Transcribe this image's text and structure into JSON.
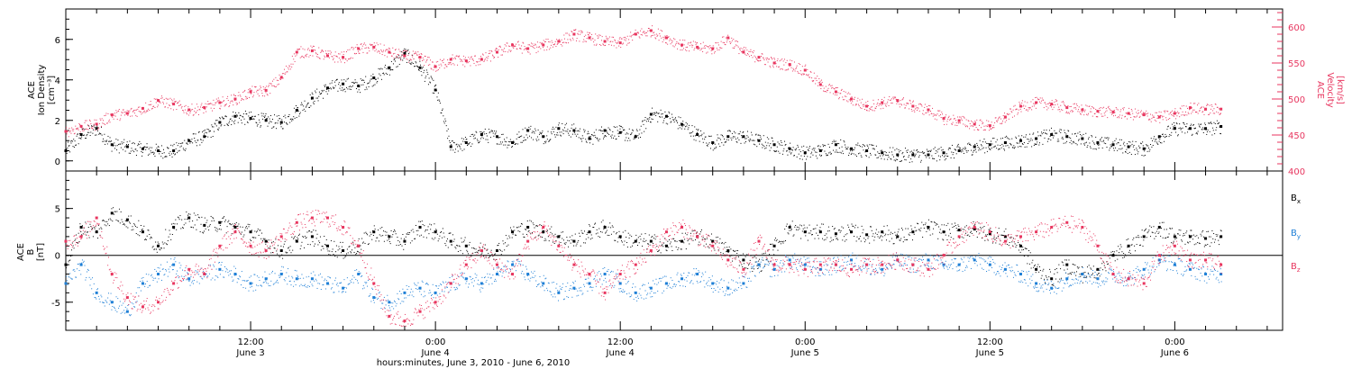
{
  "xlabel": "hours:minutes, June  3, 2010 - June  6, 2010",
  "colors": {
    "black": "#000000",
    "pink": "#e8365f",
    "blue": "#1e7fd6"
  },
  "x_range_hours": [
    0,
    79
  ],
  "x_ticks": [
    {
      "hours": 12,
      "top": "12:00",
      "bottom": "June 3"
    },
    {
      "hours": 24,
      "top": "0:00",
      "bottom": "June 4"
    },
    {
      "hours": 36,
      "top": "12:00",
      "bottom": "June 4"
    },
    {
      "hours": 48,
      "top": "0:00",
      "bottom": "June 5"
    },
    {
      "hours": 60,
      "top": "12:00",
      "bottom": "June 5"
    },
    {
      "hours": 72,
      "top": "0:00",
      "bottom": "June 6"
    }
  ],
  "chart_data": [
    {
      "type": "scatter",
      "panel": "top",
      "ylabel_left": [
        "ACE",
        "Ion Density",
        "[cm⁻³]"
      ],
      "ylabel_right": [
        "ACE",
        "Velocity",
        "[km/s]"
      ],
      "ylim_left": [
        -0.5,
        7.5
      ],
      "ylim_right": [
        400,
        625
      ],
      "yticks_left": [
        0,
        2,
        4,
        6
      ],
      "yticks_right": [
        400,
        450,
        500,
        550,
        600
      ],
      "series": [
        {
          "axis": "left",
          "color": "black",
          "x": [
            0,
            1,
            2,
            3,
            4,
            5,
            6,
            7,
            8,
            9,
            10,
            11,
            12,
            13,
            14,
            15,
            16,
            17,
            18,
            19,
            20,
            21,
            22,
            23,
            24,
            25,
            26,
            27,
            28,
            29,
            30,
            31,
            32,
            33,
            34,
            35,
            36,
            37,
            38,
            39,
            40,
            41,
            42,
            43,
            44,
            45,
            46,
            47,
            48,
            49,
            50,
            51,
            52,
            53,
            54,
            55,
            56,
            57,
            58,
            59,
            60,
            61,
            62,
            63,
            64,
            65,
            66,
            67,
            68,
            69,
            70,
            71,
            72,
            73,
            74,
            75
          ],
          "y": [
            0.5,
            1.3,
            1.6,
            0.8,
            0.7,
            0.6,
            0.5,
            0.5,
            1.0,
            1.2,
            1.9,
            2.2,
            2.1,
            2.0,
            1.9,
            2.5,
            3.1,
            3.6,
            3.8,
            3.7,
            4.1,
            4.6,
            5.3,
            4.6,
            3.5,
            0.7,
            0.9,
            1.3,
            1.2,
            0.9,
            1.5,
            1.2,
            1.6,
            1.5,
            1.1,
            1.5,
            1.4,
            1.2,
            2.3,
            2.2,
            1.8,
            1.3,
            0.9,
            1.2,
            1.2,
            1.0,
            0.8,
            0.6,
            0.4,
            0.5,
            0.8,
            0.6,
            0.5,
            0.4,
            0.3,
            0.3,
            0.3,
            0.4,
            0.5,
            0.7,
            0.8,
            0.9,
            1.0,
            1.1,
            1.3,
            1.2,
            1.1,
            0.9,
            0.8,
            0.7,
            0.6,
            1.2,
            1.6,
            1.6,
            1.6,
            1.7
          ]
        },
        {
          "axis": "right",
          "color": "pink",
          "x": [
            0,
            1,
            2,
            3,
            4,
            5,
            6,
            7,
            8,
            9,
            10,
            11,
            12,
            13,
            14,
            15,
            16,
            17,
            18,
            19,
            20,
            21,
            22,
            23,
            24,
            25,
            26,
            27,
            28,
            29,
            30,
            31,
            32,
            33,
            34,
            35,
            36,
            37,
            38,
            39,
            40,
            41,
            42,
            43,
            44,
            45,
            46,
            47,
            48,
            49,
            50,
            51,
            52,
            53,
            54,
            55,
            56,
            57,
            58,
            59,
            60,
            61,
            62,
            63,
            64,
            65,
            66,
            67,
            68,
            69,
            70,
            71,
            72,
            73,
            74,
            75
          ],
          "y": [
            455,
            462,
            465,
            478,
            480,
            487,
            498,
            493,
            485,
            488,
            495,
            500,
            510,
            512,
            530,
            565,
            567,
            560,
            558,
            570,
            572,
            565,
            560,
            558,
            545,
            555,
            553,
            555,
            565,
            575,
            570,
            575,
            580,
            590,
            585,
            580,
            578,
            590,
            595,
            585,
            575,
            572,
            570,
            585,
            565,
            558,
            550,
            548,
            540,
            520,
            510,
            500,
            490,
            495,
            498,
            490,
            485,
            473,
            470,
            465,
            463,
            475,
            490,
            495,
            493,
            488,
            485,
            483,
            482,
            480,
            478,
            475,
            480,
            488,
            486,
            486
          ]
        }
      ]
    },
    {
      "type": "scatter",
      "panel": "bottom",
      "ylabel_left": [
        "ACE",
        "B",
        "[nT]"
      ],
      "ylim": [
        -8,
        9
      ],
      "yticks": [
        -5,
        0,
        5
      ],
      "legend_position": "right",
      "series": [
        {
          "name": "Bx",
          "label_main": "B",
          "label_sub": "x",
          "color": "black",
          "x": [
            0,
            1,
            2,
            3,
            4,
            5,
            6,
            7,
            8,
            9,
            10,
            11,
            12,
            13,
            14,
            15,
            16,
            17,
            18,
            19,
            20,
            21,
            22,
            23,
            24,
            25,
            26,
            27,
            28,
            29,
            30,
            31,
            32,
            33,
            34,
            35,
            36,
            37,
            38,
            39,
            40,
            41,
            42,
            43,
            44,
            45,
            46,
            47,
            48,
            49,
            50,
            51,
            52,
            53,
            54,
            55,
            56,
            57,
            58,
            59,
            60,
            61,
            62,
            63,
            64,
            65,
            66,
            67,
            68,
            69,
            70,
            71,
            72,
            73,
            74,
            75
          ],
          "y": [
            -1.0,
            3.0,
            2.5,
            4.5,
            3.8,
            2.5,
            1.0,
            3.0,
            4.0,
            3.2,
            3.5,
            3.0,
            2.5,
            1.5,
            0.5,
            1.5,
            2.0,
            1.0,
            0.5,
            1.0,
            2.5,
            2.0,
            1.5,
            3.0,
            2.5,
            1.5,
            1.0,
            0.5,
            0.5,
            2.5,
            3.0,
            2.5,
            2.0,
            1.5,
            2.5,
            3.0,
            2.0,
            1.5,
            1.5,
            1.0,
            1.5,
            2.0,
            1.5,
            0.5,
            -0.5,
            -1.0,
            1.0,
            3.0,
            2.5,
            2.5,
            2.3,
            2.5,
            2.2,
            2.5,
            2.0,
            2.5,
            3.0,
            2.5,
            2.7,
            2.8,
            2.3,
            2.0,
            1.0,
            -1.5,
            -2.5,
            -1.0,
            -2.0,
            -1.5,
            0.0,
            1.0,
            2.0,
            3.0,
            2.0,
            2.0,
            1.8,
            2.0
          ]
        },
        {
          "name": "By",
          "label_main": "B",
          "label_sub": "y",
          "color": "blue",
          "x": [
            0,
            1,
            2,
            3,
            4,
            5,
            6,
            7,
            8,
            9,
            10,
            11,
            12,
            13,
            14,
            15,
            16,
            17,
            18,
            19,
            20,
            21,
            22,
            23,
            24,
            25,
            26,
            27,
            28,
            29,
            30,
            31,
            32,
            33,
            34,
            35,
            36,
            37,
            38,
            39,
            40,
            41,
            42,
            43,
            44,
            45,
            46,
            47,
            48,
            49,
            50,
            51,
            52,
            53,
            54,
            55,
            56,
            57,
            58,
            59,
            60,
            61,
            62,
            63,
            64,
            65,
            66,
            67,
            68,
            69,
            70,
            71,
            72,
            73,
            74,
            75
          ],
          "y": [
            -3.0,
            -1.0,
            -4.0,
            -5.0,
            -6.0,
            -3.0,
            -2.0,
            -1.0,
            -2.5,
            -2.0,
            -1.5,
            -2.0,
            -3.0,
            -2.5,
            -2.0,
            -2.5,
            -2.5,
            -3.0,
            -3.5,
            -2.0,
            -4.5,
            -5.0,
            -4.0,
            -3.5,
            -4.0,
            -3.0,
            -2.5,
            -3.0,
            -2.0,
            -1.0,
            -2.0,
            -3.0,
            -4.0,
            -3.5,
            -3.0,
            -2.0,
            -3.0,
            -4.0,
            -3.5,
            -3.0,
            -2.5,
            -2.0,
            -3.0,
            -3.5,
            -3.0,
            -1.0,
            -1.5,
            -0.5,
            -1.0,
            -1.5,
            -1.0,
            -0.5,
            -1.0,
            -1.5,
            -0.5,
            -1.0,
            -0.5,
            -1.0,
            -1.0,
            -0.5,
            -1.0,
            -1.5,
            -2.0,
            -3.0,
            -3.5,
            -2.5,
            -2.0,
            -2.5,
            -2.0,
            -2.5,
            -1.5,
            -0.5,
            -1.0,
            -1.5,
            -2.0,
            -2.0
          ]
        },
        {
          "name": "Bz",
          "label_main": "B",
          "label_sub": "z",
          "color": "pink",
          "x": [
            0,
            1,
            2,
            3,
            4,
            5,
            6,
            7,
            8,
            9,
            10,
            11,
            12,
            13,
            14,
            15,
            16,
            17,
            18,
            19,
            20,
            21,
            22,
            23,
            24,
            25,
            26,
            27,
            28,
            29,
            30,
            31,
            32,
            33,
            34,
            35,
            36,
            37,
            38,
            39,
            40,
            41,
            42,
            43,
            44,
            45,
            46,
            47,
            48,
            49,
            50,
            51,
            52,
            53,
            54,
            55,
            56,
            57,
            58,
            59,
            60,
            61,
            62,
            63,
            64,
            65,
            66,
            67,
            68,
            69,
            70,
            71,
            72,
            73,
            74,
            75
          ],
          "y": [
            1.5,
            2.0,
            4.0,
            -2.0,
            -4.5,
            -5.5,
            -5.0,
            -3.0,
            -1.5,
            -2.0,
            1.0,
            2.5,
            1.0,
            0.5,
            2.0,
            3.5,
            4.0,
            4.0,
            3.0,
            1.0,
            -3.0,
            -6.5,
            -7.0,
            -6.0,
            -5.0,
            -3.0,
            -1.0,
            0.5,
            -1.0,
            -2.0,
            1.5,
            3.0,
            1.0,
            -1.0,
            -2.0,
            -4.0,
            -2.0,
            -1.0,
            0.5,
            2.5,
            3.0,
            2.0,
            1.0,
            -0.5,
            -1.5,
            1.5,
            -1.0,
            -1.0,
            -1.5,
            -1.0,
            -1.0,
            -1.5,
            -1.0,
            -1.0,
            -0.5,
            -1.0,
            -1.5,
            0.0,
            2.0,
            3.0,
            2.5,
            1.5,
            2.0,
            2.5,
            3.0,
            3.5,
            3.0,
            1.0,
            -2.0,
            -2.5,
            -3.0,
            0.0,
            1.0,
            -0.5,
            -0.5,
            -1.0
          ]
        }
      ]
    }
  ]
}
